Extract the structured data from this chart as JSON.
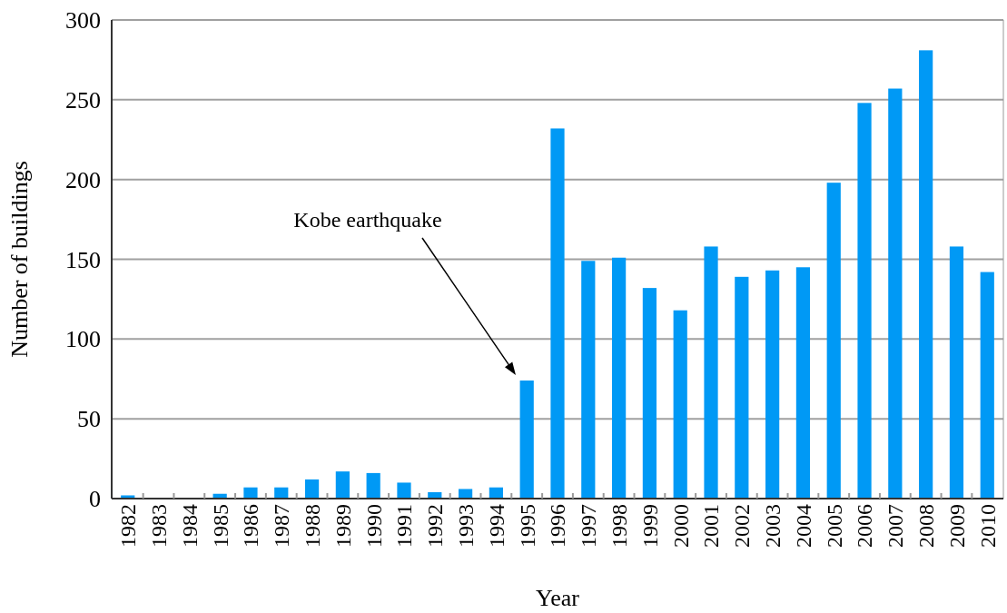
{
  "chart_data": {
    "type": "bar",
    "xlabel": "Year",
    "ylabel": "Number of buildings",
    "categories": [
      "1982",
      "1983",
      "1984",
      "1985",
      "1986",
      "1987",
      "1988",
      "1989",
      "1990",
      "1991",
      "1992",
      "1993",
      "1994",
      "1995",
      "1996",
      "1997",
      "1998",
      "1999",
      "2000",
      "2001",
      "2002",
      "2003",
      "2004",
      "2005",
      "2006",
      "2007",
      "2008",
      "2009",
      "2010"
    ],
    "values": [
      2,
      0,
      0,
      3,
      7,
      7,
      12,
      17,
      16,
      10,
      4,
      6,
      7,
      74,
      232,
      149,
      151,
      132,
      118,
      158,
      139,
      143,
      145,
      198,
      248,
      257,
      281,
      158,
      142
    ],
    "color": "#0099f5",
    "ylim": [
      0,
      300
    ],
    "yticks": [
      0,
      50,
      100,
      150,
      200,
      250,
      300
    ],
    "grid": "y",
    "annotations": [
      "Kobe earthquake"
    ]
  }
}
